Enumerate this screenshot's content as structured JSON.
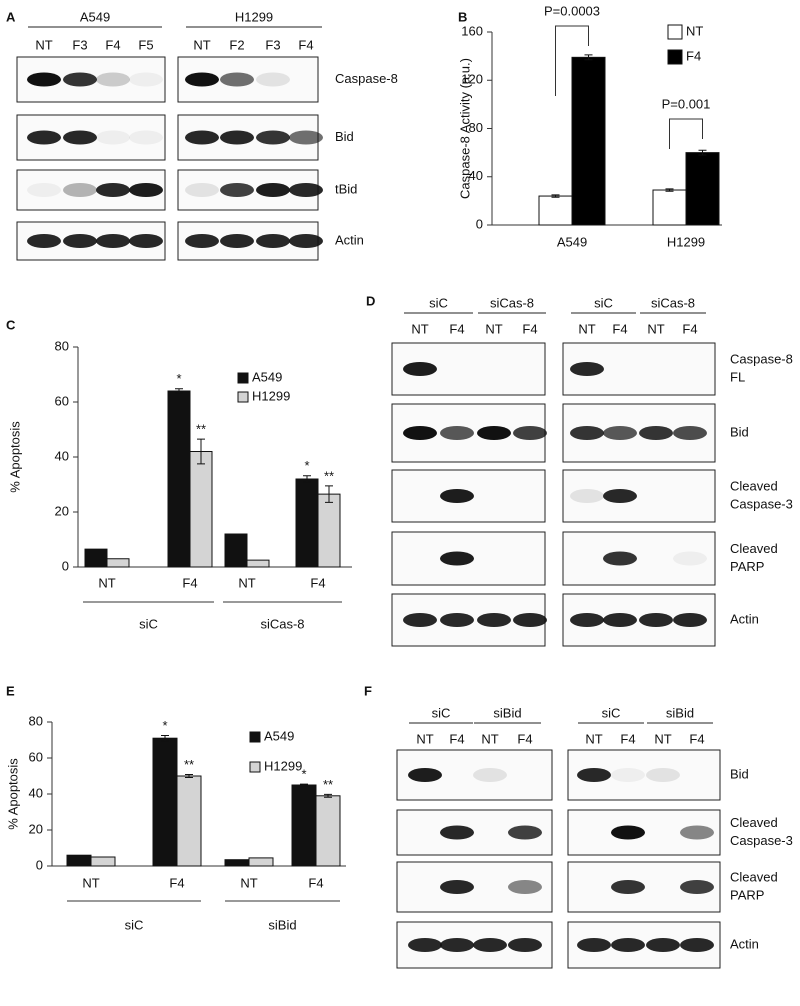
{
  "panel_labels": [
    "A",
    "B",
    "C",
    "D",
    "E",
    "F"
  ],
  "chart_data": [
    {
      "type": "bar",
      "y_label": "Caspase-8 Activity (a.u.)",
      "categories": [
        "A549",
        "H1299"
      ],
      "series": [
        {
          "name": "NT",
          "color": "#ffffff",
          "values": [
            24,
            29
          ],
          "errors": [
            1,
            1
          ]
        },
        {
          "name": "F4",
          "color": "#000000",
          "values": [
            139,
            60
          ],
          "errors": [
            2,
            2
          ]
        }
      ],
      "annotations": [
        "P=0.0003",
        "P=0.001"
      ],
      "ylim": [
        0,
        160
      ],
      "yticks": [
        0,
        40,
        80,
        120,
        160
      ],
      "grid": false
    },
    {
      "type": "bar",
      "y_label": "% Apoptosis",
      "categories": [
        "NT",
        "F4",
        "NT",
        "F4"
      ],
      "groups": [
        "siC",
        "siCas-8"
      ],
      "series": [
        {
          "name": "A549",
          "color": "#111111",
          "values": [
            6.5,
            64,
            12,
            32
          ],
          "errors": [
            0,
            0.8,
            0,
            1.2
          ],
          "sig_labels": [
            null,
            "*",
            null,
            "*"
          ]
        },
        {
          "name": "H1299",
          "color": "#d4d4d4",
          "values": [
            3,
            42,
            2.5,
            26.5
          ],
          "errors": [
            0,
            4.5,
            0,
            3
          ],
          "sig_labels": [
            null,
            "**",
            null,
            "**"
          ]
        }
      ],
      "ylim": [
        0,
        80
      ],
      "yticks": [
        0,
        20,
        40,
        60,
        80
      ],
      "grid": false
    },
    {
      "type": "bar",
      "y_label": "% Apoptosis",
      "categories": [
        "NT",
        "F4",
        "NT",
        "F4"
      ],
      "groups": [
        "siC",
        "siBid"
      ],
      "series": [
        {
          "name": "A549",
          "color": "#111111",
          "values": [
            6,
            71,
            3.5,
            45
          ],
          "errors": [
            0,
            1.5,
            0,
            0.5
          ],
          "sig_labels": [
            null,
            "*",
            null,
            "*"
          ]
        },
        {
          "name": "H1299",
          "color": "#d4d4d4",
          "values": [
            5,
            50,
            4.5,
            39
          ],
          "errors": [
            0,
            0.8,
            0,
            0.8
          ],
          "sig_labels": [
            null,
            "**",
            null,
            "**"
          ]
        }
      ],
      "ylim": [
        0,
        80
      ],
      "yticks": [
        0,
        20,
        40,
        60,
        80
      ],
      "grid": false
    }
  ],
  "blots": [
    {
      "panels": [
        {
          "groups": [
            {
              "label": "A549",
              "lanes": [
                "NT",
                "F3",
                "F4",
                "F5"
              ]
            }
          ]
        },
        {
          "groups": [
            {
              "label": "H1299",
              "lanes": [
                "NT",
                "F2",
                "F3",
                "F4"
              ]
            }
          ]
        }
      ],
      "rows": [
        [
          "Caspase-8"
        ],
        [
          "Bid"
        ],
        [
          "tBid"
        ],
        [
          "Actin"
        ]
      ]
    },
    {
      "panels": [
        {
          "groups": [
            {
              "label": "siC",
              "lanes": [
                "NT",
                "F4"
              ]
            },
            {
              "label": "siCas-8",
              "lanes": [
                "NT",
                "F4"
              ]
            }
          ]
        },
        {
          "groups": [
            {
              "label": "siC",
              "lanes": [
                "NT",
                "F4"
              ]
            },
            {
              "label": "siCas-8",
              "lanes": [
                "NT",
                "F4"
              ]
            }
          ]
        }
      ],
      "rows": [
        [
          "Caspase-8",
          "FL"
        ],
        [
          "Bid"
        ],
        [
          "Cleaved",
          "Caspase-3"
        ],
        [
          "Cleaved",
          "PARP"
        ],
        [
          "Actin"
        ]
      ]
    },
    {
      "panels": [
        {
          "groups": [
            {
              "label": "siC",
              "lanes": [
                "NT",
                "F4"
              ]
            },
            {
              "label": "siBid",
              "lanes": [
                "NT",
                "F4"
              ]
            }
          ]
        },
        {
          "groups": [
            {
              "label": "siC",
              "lanes": [
                "NT",
                "F4"
              ]
            },
            {
              "label": "siBid",
              "lanes": [
                "NT",
                "F4"
              ]
            }
          ]
        }
      ],
      "rows": [
        [
          "Bid"
        ],
        [
          "Cleaved",
          "Caspase-3"
        ],
        [
          "Cleaved",
          "PARP"
        ],
        [
          "Actin"
        ]
      ]
    }
  ]
}
